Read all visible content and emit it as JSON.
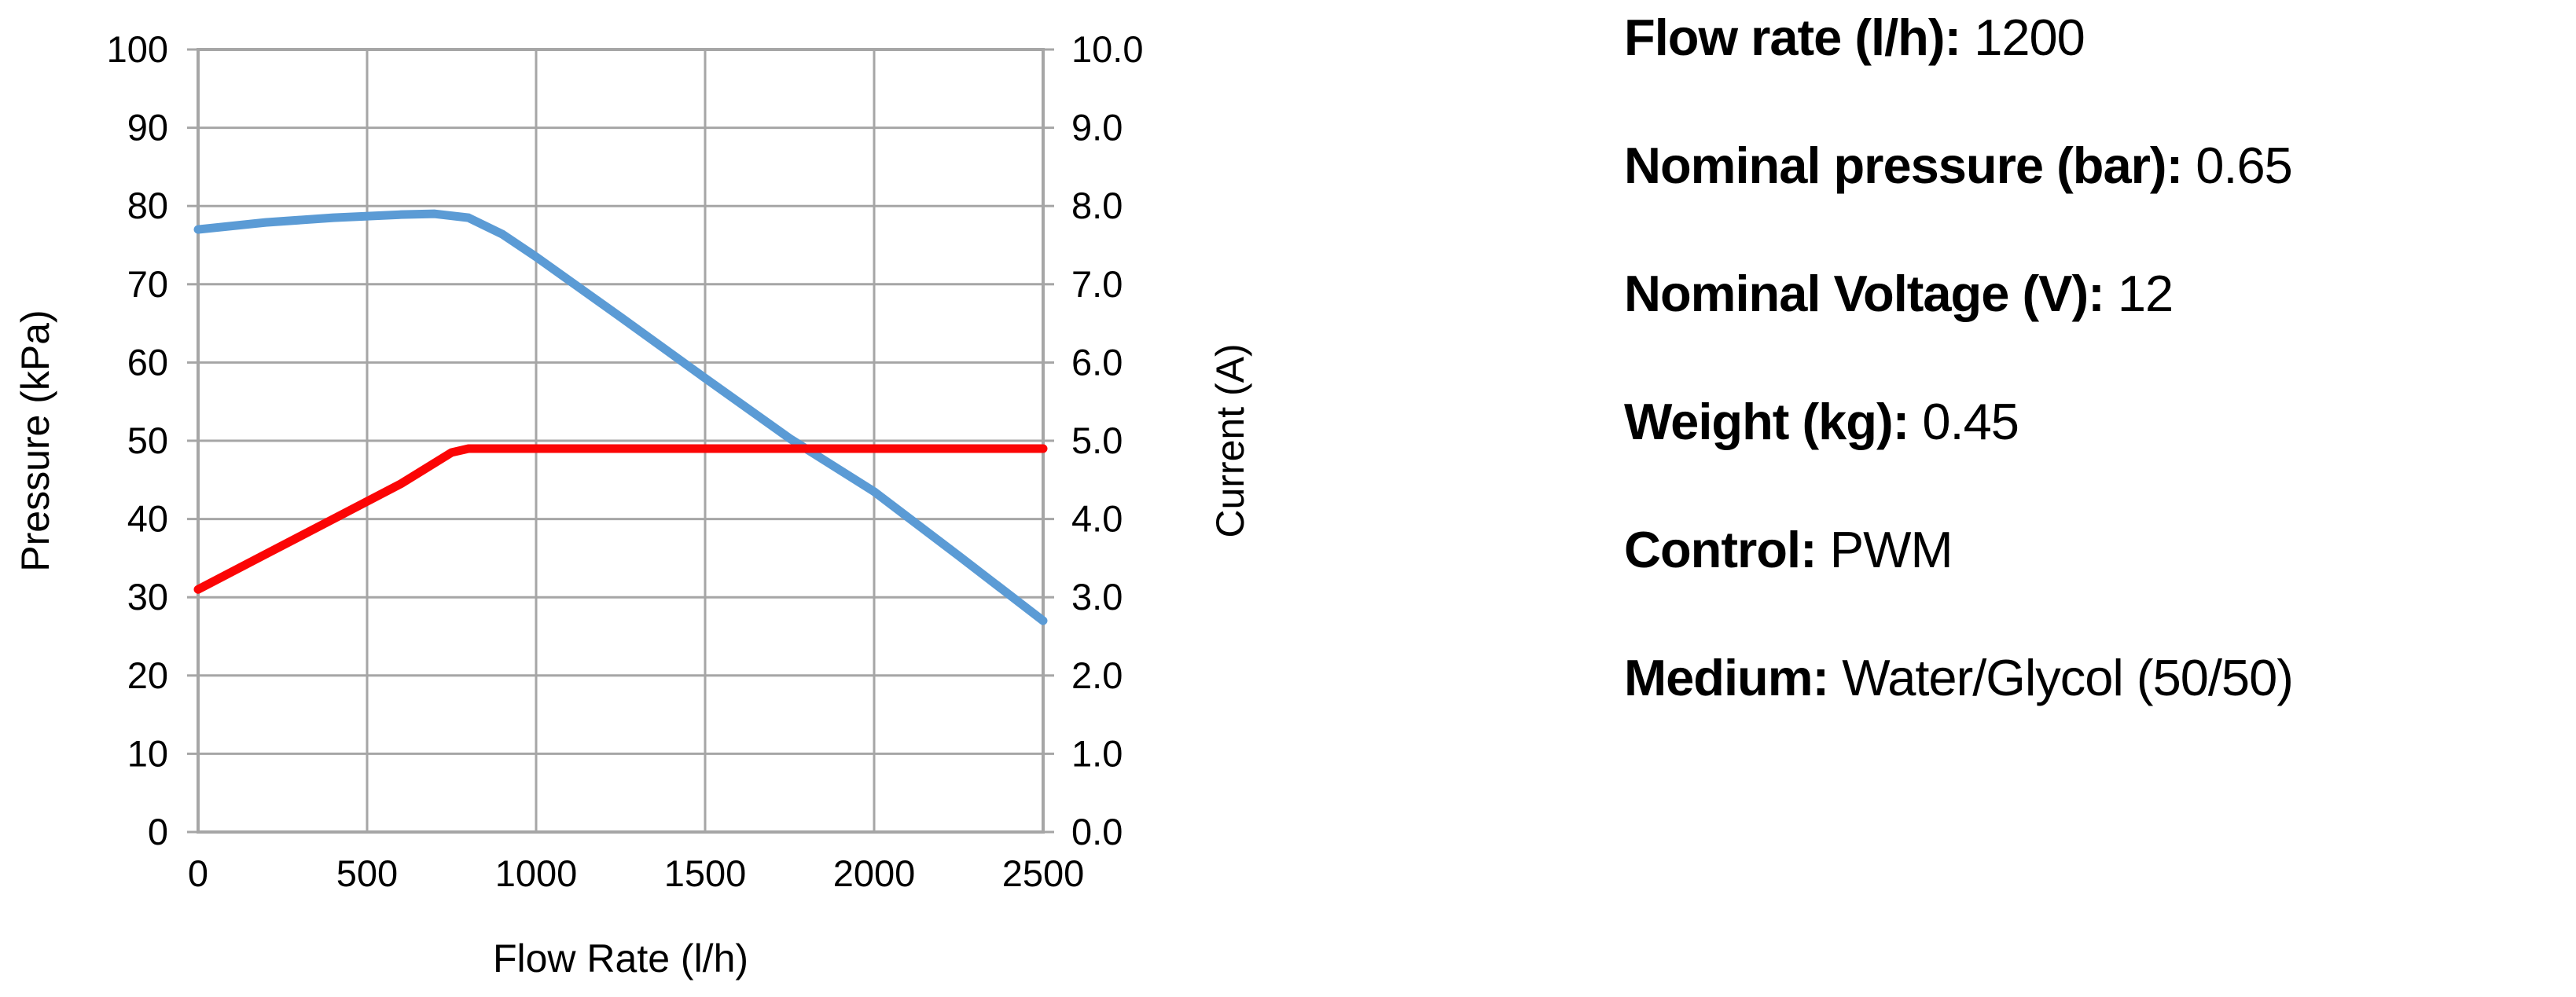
{
  "chart_data": {
    "type": "line",
    "title": "",
    "xlabel": "Flow Rate (l/h)",
    "ylabel_left": "Pressure (kPa)",
    "ylabel_right": "Current (A)",
    "xlim": [
      0,
      2500
    ],
    "xticks": [
      "0",
      "500",
      "1000",
      "1500",
      "2000",
      "2500"
    ],
    "ylim_left": [
      0,
      100
    ],
    "yticks_left": [
      "0",
      "10",
      "20",
      "30",
      "40",
      "50",
      "60",
      "70",
      "80",
      "90",
      "100"
    ],
    "ylim_right": [
      0,
      10
    ],
    "yticks_right": [
      "0.0",
      "1.0",
      "2.0",
      "3.0",
      "4.0",
      "5.0",
      "6.0",
      "7.0",
      "8.0",
      "9.0",
      "10.0"
    ],
    "grid": true,
    "legend": "none",
    "series": [
      {
        "name": "Pressure (kPa)",
        "axis": "left",
        "color": "#5B9BD5",
        "x": [
          0,
          200,
          400,
          600,
          700,
          800,
          900,
          1000,
          1250,
          1500,
          1750,
          2000,
          2250,
          2500
        ],
        "y": [
          77,
          77.9,
          78.5,
          78.9,
          79,
          78.5,
          76.4,
          73.5,
          65.8,
          58,
          50.3,
          43.5,
          35.3,
          27
        ]
      },
      {
        "name": "Current (A)",
        "axis": "right",
        "color": "#FB0505",
        "x": [
          0,
          200,
          400,
          600,
          750,
          800,
          1000,
          1500,
          2000,
          2500
        ],
        "y": [
          3.1,
          3.55,
          4.0,
          4.45,
          4.85,
          4.9,
          4.9,
          4.9,
          4.9,
          4.9
        ]
      }
    ]
  },
  "colors": {
    "grid": "#A6A6A6",
    "axis_border": "#A6A6A6",
    "tick_text": "#000000",
    "background": "#FFFFFF"
  },
  "specs": {
    "rows": [
      {
        "label": "Flow rate (l/h):",
        "value": "1200"
      },
      {
        "label": "Nominal pressure (bar):",
        "value": "0.65"
      },
      {
        "label": "Nominal Voltage (V):",
        "value": "12"
      },
      {
        "label": "Weight (kg):",
        "value": "0.45"
      },
      {
        "label": "Control:",
        "value": "PWM"
      },
      {
        "label": "Medium:",
        "value": "Water/Glycol (50/50)"
      }
    ]
  }
}
